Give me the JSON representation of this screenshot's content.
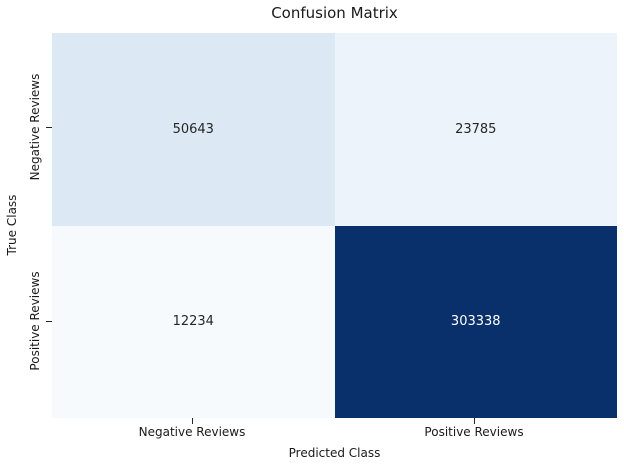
{
  "chart_data": {
    "type": "heatmap",
    "title": "Confusion Matrix",
    "xlabel": "Predicted Class",
    "ylabel": "True Class",
    "x_categories": [
      "Negative Reviews",
      "Positive Reviews"
    ],
    "y_categories": [
      "Negative Reviews",
      "Positive Reviews"
    ],
    "matrix": [
      [
        50643,
        23785
      ],
      [
        12234,
        303338
      ]
    ],
    "colormap": "Blues",
    "legend": "none",
    "grid": false,
    "cells": [
      {
        "row": "Negative Reviews",
        "col": "Negative Reviews",
        "value": "50643",
        "color": "#dce9f5",
        "text_color": "#262626"
      },
      {
        "row": "Negative Reviews",
        "col": "Positive Reviews",
        "value": "23785",
        "color": "#edf3fa",
        "text_color": "#262626"
      },
      {
        "row": "Positive Reviews",
        "col": "Negative Reviews",
        "value": "12234",
        "color": "#f7fafd",
        "text_color": "#262626"
      },
      {
        "row": "Positive Reviews",
        "col": "Positive Reviews",
        "value": "303338",
        "color": "#09306a",
        "text_color": "#ffffff"
      }
    ]
  }
}
